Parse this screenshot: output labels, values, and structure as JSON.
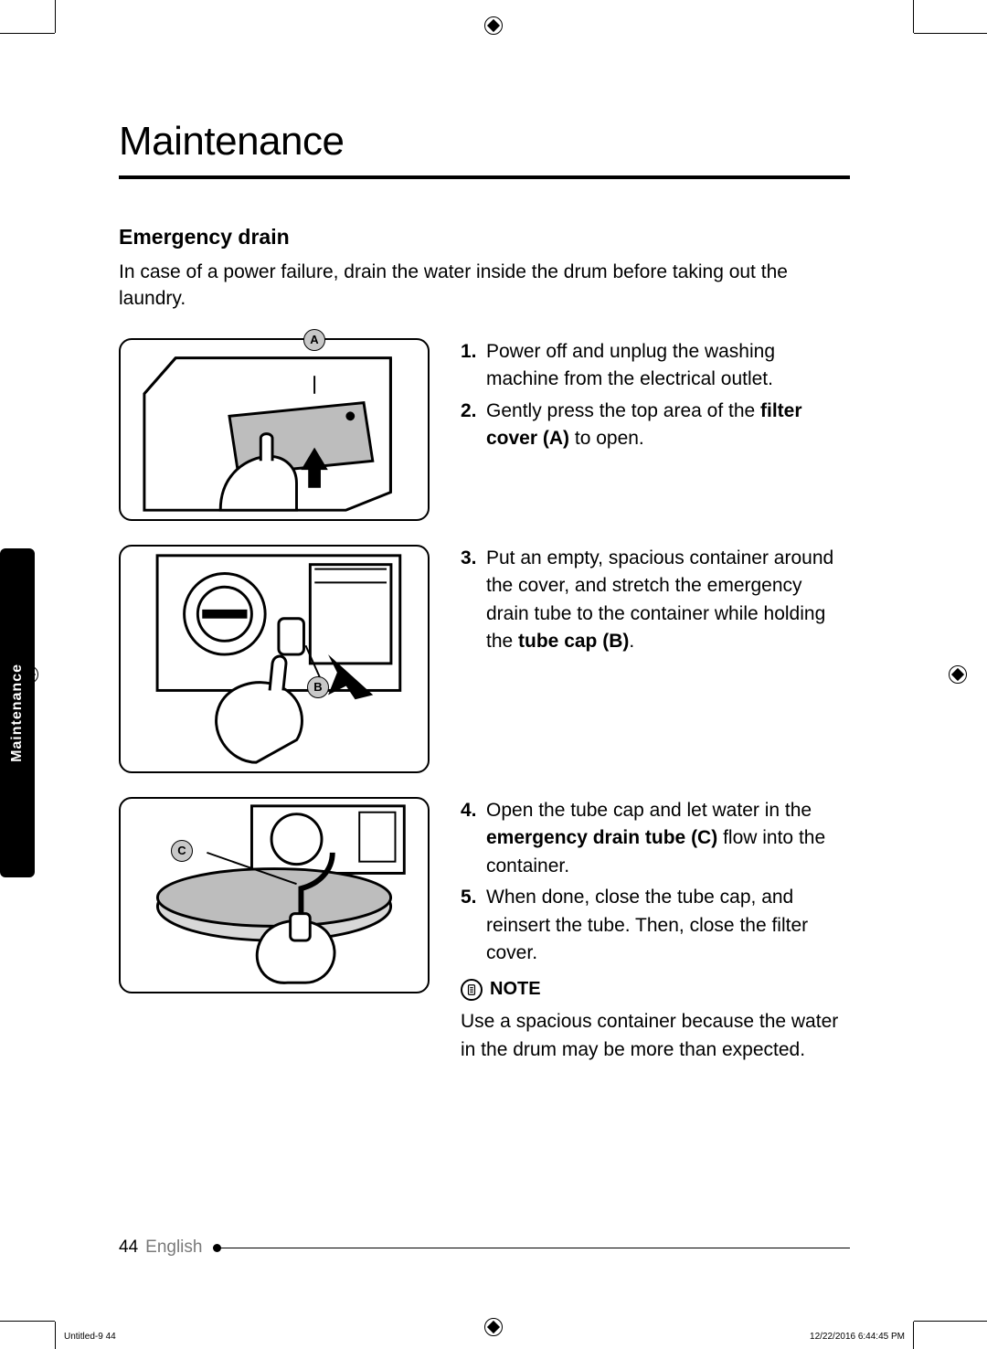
{
  "title": "Maintenance",
  "subheading": "Emergency drain",
  "intro": "In case of a power failure, drain the water inside the drum before taking out the laundry.",
  "figures": {
    "a_label": "A",
    "b_label": "B",
    "c_label": "C"
  },
  "steps_group1": [
    {
      "num": "1.",
      "text_before": "Power off and unplug the washing machine from the electrical outlet.",
      "bold": "",
      "text_after": ""
    },
    {
      "num": "2.",
      "text_before": "Gently press the top area of the ",
      "bold": "filter cover (A)",
      "text_after": " to open."
    }
  ],
  "steps_group2": [
    {
      "num": "3.",
      "text_before": "Put an empty, spacious container around the cover, and stretch the emergency drain tube to the container while holding the ",
      "bold": "tube cap (B)",
      "text_after": "."
    }
  ],
  "steps_group3": [
    {
      "num": "4.",
      "text_before": "Open the tube cap and let water in the ",
      "bold": "emergency drain tube (C)",
      "text_after": " flow into the container."
    },
    {
      "num": "5.",
      "text_before": "When done, close the tube cap, and reinsert the tube. Then, close the filter cover.",
      "bold": "",
      "text_after": ""
    }
  ],
  "note_label": "NOTE",
  "note_text": "Use a spacious container because the water in the drum may be more than expected.",
  "side_tab": "Maintenance",
  "page_number": "44",
  "language": "English",
  "meta_left": "Untitled-9   44",
  "meta_right": "12/22/2016   6:44:45 PM"
}
